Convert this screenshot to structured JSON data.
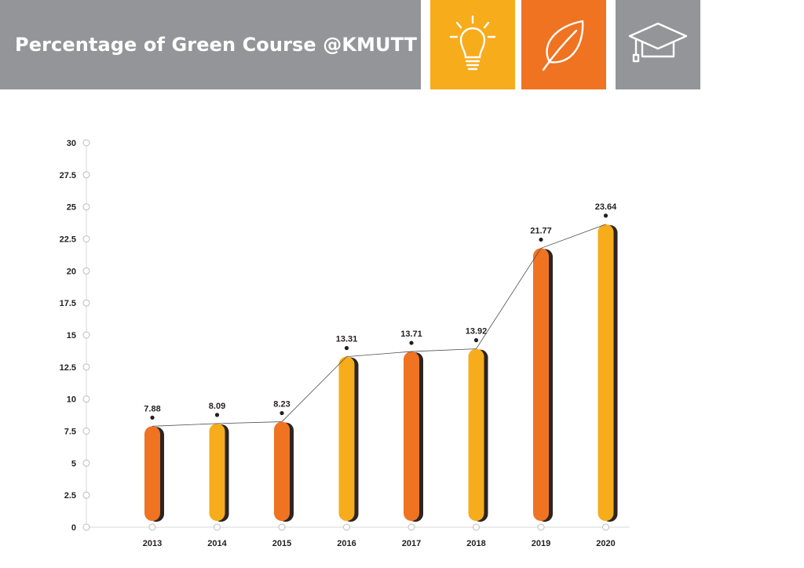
{
  "title": "Percentage of Green Course @KMUTT",
  "icons": [
    {
      "name": "lightbulb-icon",
      "color": "#f7ac1c"
    },
    {
      "name": "leaf-icon",
      "color": "#f07322"
    },
    {
      "name": "graduation-cap-icon",
      "color": "#939598"
    }
  ],
  "chart_data": {
    "type": "bar",
    "categories": [
      "2013",
      "2014",
      "2015",
      "2016",
      "2017",
      "2018",
      "2019",
      "2020"
    ],
    "values": [
      7.88,
      8.09,
      8.23,
      13.31,
      13.71,
      13.92,
      21.77,
      23.64
    ],
    "data_labels": [
      "7.88",
      "8.09",
      "8.23",
      "13.31",
      "13.71",
      "13.92",
      "21.77",
      "23.64"
    ],
    "bar_colors": [
      "#f07322",
      "#f7ac1c",
      "#f07322",
      "#f7ac1c",
      "#f07322",
      "#f7ac1c",
      "#f07322",
      "#f7ac1c"
    ],
    "yticks": [
      "0",
      "2.5",
      "5",
      "7.5",
      "10",
      "12.5",
      "15",
      "17.5",
      "20",
      "22.5",
      "25",
      "27.5",
      "30"
    ],
    "ylim": [
      0,
      30
    ],
    "grid": false,
    "trend_line": true,
    "title": "",
    "xlabel": "",
    "ylabel": ""
  }
}
